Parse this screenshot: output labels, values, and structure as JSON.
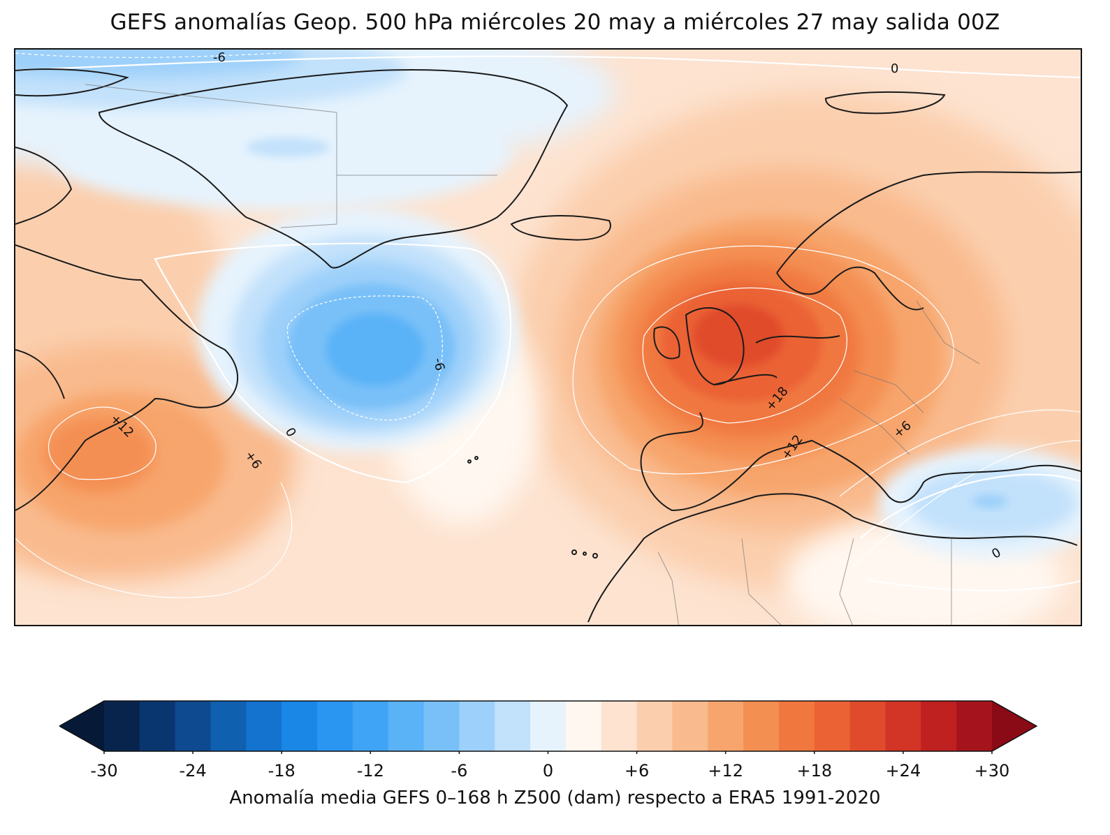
{
  "title": "GEFS anomalías Geop. 500 hPa miércoles 20 may a miércoles 27 may salida 00Z",
  "colorbar": {
    "label": "Anomalía media GEFS 0–168 h Z500 (dam) respecto a ERA5 1991-2020",
    "min": -30,
    "max": 30,
    "step": 2,
    "extend": "both",
    "ticks": [
      "-30",
      "-24",
      "-18",
      "-12",
      "-6",
      "0",
      "+6",
      "+12",
      "+18",
      "+24",
      "+30"
    ],
    "colors": [
      "#08244d",
      "#0a3670",
      "#0d4a8f",
      "#1060b0",
      "#1373cf",
      "#1a86e6",
      "#2a96f2",
      "#3fa4f5",
      "#5ab2f7",
      "#79c0f8",
      "#9dd0fa",
      "#c2e1fb",
      "#e6f3fd",
      "#fff7f0",
      "#fde3d0",
      "#fbcfae",
      "#f9ba8d",
      "#f7a56c",
      "#f48f52",
      "#f0783f",
      "#eb6235",
      "#e04b2c",
      "#d23525",
      "#bf2020",
      "#a5141c"
    ],
    "under_color": "#061a38",
    "over_color": "#8a0a16"
  },
  "contour_labels": [
    {
      "text": "-6"
    },
    {
      "text": "0"
    },
    {
      "text": "-6"
    },
    {
      "text": "0"
    },
    {
      "text": "+12"
    },
    {
      "text": "+6"
    },
    {
      "text": "+18"
    },
    {
      "text": "+12"
    },
    {
      "text": "+6"
    },
    {
      "text": "0"
    }
  ]
}
